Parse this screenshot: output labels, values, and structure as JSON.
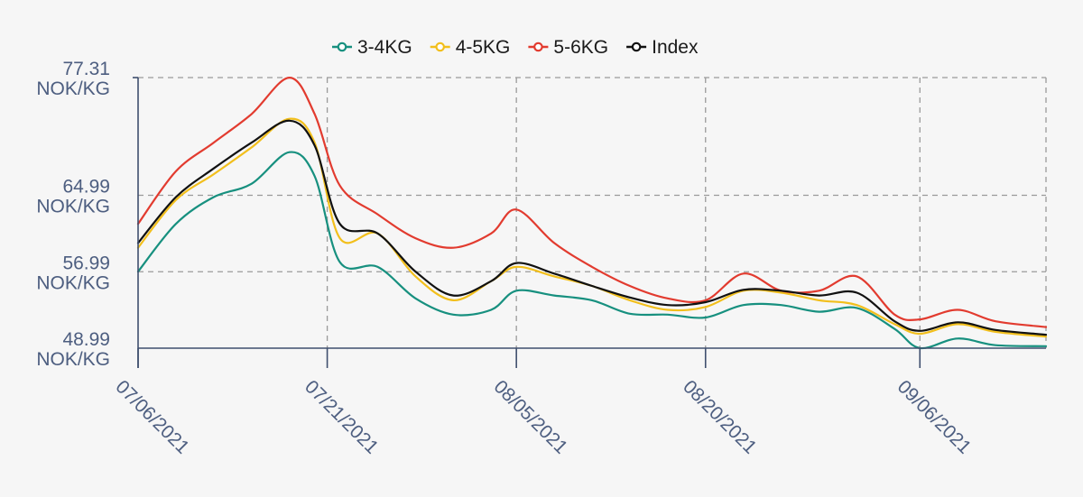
{
  "chart_data": {
    "type": "line",
    "legend_position": "top-center",
    "grid": true,
    "x_dates": [
      "2021-07-06",
      "2021-07-09",
      "2021-07-12",
      "2021-07-15",
      "2021-07-18",
      "2021-07-20",
      "2021-07-22",
      "2021-07-25",
      "2021-07-28",
      "2021-07-31",
      "2021-08-03",
      "2021-08-05",
      "2021-08-08",
      "2021-08-11",
      "2021-08-14",
      "2021-08-17",
      "2021-08-20",
      "2021-08-23",
      "2021-08-26",
      "2021-08-29",
      "2021-09-01",
      "2021-09-04",
      "2021-09-06",
      "2021-09-09",
      "2021-09-12",
      "2021-09-16"
    ],
    "xticks": [
      {
        "date": "2021-07-06",
        "label": "07/06/2021"
      },
      {
        "date": "2021-07-21",
        "label": "07/21/2021"
      },
      {
        "date": "2021-08-05",
        "label": "08/05/2021"
      },
      {
        "date": "2021-08-20",
        "label": "08/20/2021"
      },
      {
        "date": "2021-09-06",
        "label": "09/06/2021"
      }
    ],
    "yticks": [
      {
        "value": 48.99,
        "value_label": "48.99",
        "unit": "NOK/KG"
      },
      {
        "value": 56.99,
        "value_label": "56.99",
        "unit": "NOK/KG"
      },
      {
        "value": 64.99,
        "value_label": "64.99",
        "unit": "NOK/KG"
      },
      {
        "value": 77.31,
        "value_label": "77.31",
        "unit": "NOK/KG"
      }
    ],
    "ylim": [
      48.99,
      77.31
    ],
    "xlim": [
      "2021-07-06",
      "2021-09-16"
    ],
    "series": [
      {
        "name": "3-4KG",
        "color": "#17907f",
        "values": [
          57.0,
          62.0,
          64.8,
          66.2,
          69.5,
          67.0,
          58.0,
          57.5,
          54.2,
          52.5,
          53.0,
          55.0,
          54.5,
          54.0,
          52.6,
          52.5,
          52.2,
          53.5,
          53.5,
          52.8,
          53.2,
          51.0,
          49.0,
          50.0,
          49.3,
          49.2
        ]
      },
      {
        "name": "4-5KG",
        "color": "#f2bf1c",
        "values": [
          59.5,
          64.5,
          67.2,
          70.0,
          73.0,
          70.5,
          60.5,
          61.0,
          56.5,
          54.0,
          56.0,
          57.5,
          56.5,
          55.5,
          54.0,
          53.0,
          53.3,
          55.0,
          54.8,
          54.0,
          53.5,
          51.5,
          50.5,
          51.5,
          50.7,
          50.2
        ]
      },
      {
        "name": "5-6KG",
        "color": "#e23b2f",
        "values": [
          62.0,
          67.5,
          70.5,
          73.5,
          77.3,
          73.5,
          66.0,
          63.0,
          60.5,
          59.5,
          61.0,
          63.5,
          60.0,
          57.5,
          55.5,
          54.2,
          54.0,
          56.8,
          55.0,
          55.0,
          56.5,
          52.5,
          52.0,
          53.0,
          51.8,
          51.2
        ]
      },
      {
        "name": "Index",
        "color": "#111111",
        "values": [
          60.0,
          64.8,
          67.8,
          70.5,
          72.8,
          70.2,
          62.0,
          61.0,
          57.0,
          54.5,
          56.0,
          57.9,
          56.8,
          55.5,
          54.3,
          53.5,
          53.8,
          55.1,
          55.0,
          54.5,
          54.8,
          51.8,
          50.8,
          51.7,
          50.9,
          50.4
        ]
      }
    ]
  }
}
